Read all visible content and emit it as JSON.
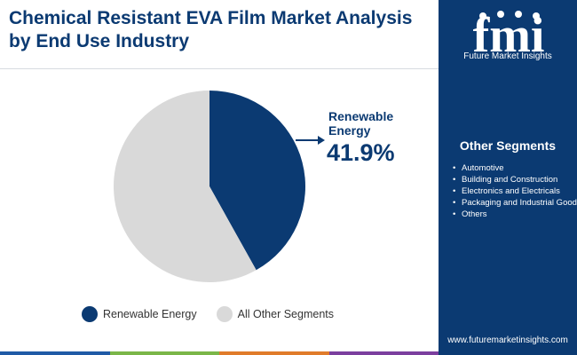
{
  "header": {
    "title": "Chemical Resistant EVA Film Market Analysis by End Use Industry"
  },
  "brand": {
    "logo_mark": "fmi",
    "name": "Future Market Insights",
    "website": "www.futuremarketinsights.com",
    "sidebar_color": "#0b3a72"
  },
  "sidebar": {
    "heading": "Other Segments",
    "items": [
      "Automotive",
      "Building and Construction",
      "Electronics and Electricals",
      "Packaging and Industrial Goods",
      "Others"
    ]
  },
  "callout": {
    "label": "Renewable Energy",
    "value": "41.9%"
  },
  "colors": {
    "primary": "#0b3a72",
    "other": "#d9d9d9",
    "footer_stripe": [
      "#1f5aa6",
      "#7ab648",
      "#e07b2a",
      "#7b3f9e"
    ]
  },
  "chart_data": {
    "type": "pie",
    "slices": [
      {
        "label": "Renewable Energy",
        "value": 41.9,
        "color": "#0b3a72"
      },
      {
        "label": "All Other Segments",
        "value": 58.1,
        "color": "#d9d9d9"
      }
    ],
    "start_angle": "12 o'clock",
    "direction": "clockwise",
    "legend_position": "bottom"
  }
}
